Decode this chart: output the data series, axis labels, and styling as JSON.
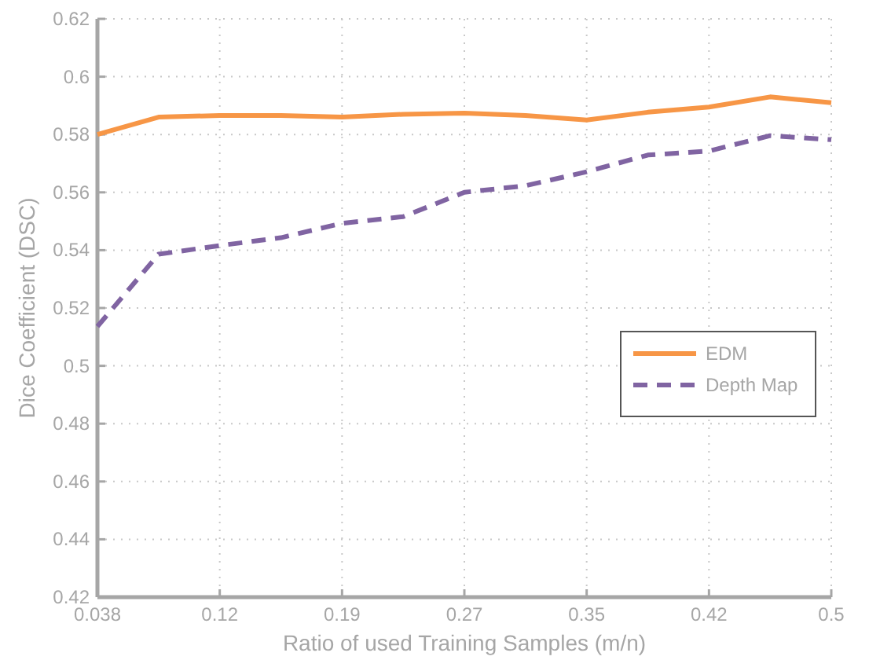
{
  "chart_data": {
    "type": "line",
    "xlabel": "Ratio of used Training Samples (m/n)",
    "ylabel": "Dice Coefficient (DSC)",
    "x": [
      0.038,
      0.0765,
      0.115,
      0.1535,
      0.192,
      0.2305,
      0.269,
      0.3075,
      0.346,
      0.3845,
      0.423,
      0.4615,
      0.5
    ],
    "series": [
      {
        "name": "EDM",
        "color": "#f79646",
        "line_style": "solid",
        "values": [
          0.58,
          0.586,
          0.5866,
          0.5866,
          0.586,
          0.587,
          0.5874,
          0.5866,
          0.585,
          0.5877,
          0.5895,
          0.593,
          0.591
        ]
      },
      {
        "name": "Depth Map",
        "color": "#8064a2",
        "line_style": "dashed",
        "values": [
          0.5136,
          0.5386,
          0.5416,
          0.5443,
          0.5493,
          0.5516,
          0.56,
          0.5623,
          0.5671,
          0.5729,
          0.5743,
          0.5796,
          0.5782
        ]
      }
    ],
    "xlim": [
      0.038,
      0.5
    ],
    "xticks": [
      0.038,
      {
        "value": 0.115,
        "label": "0.12"
      },
      {
        "value": 0.192,
        "label": "0.19"
      },
      {
        "value": 0.269,
        "label": "0.27"
      },
      {
        "value": 0.346,
        "label": "0.35"
      },
      {
        "value": 0.423,
        "label": "0.42"
      },
      0.5
    ],
    "ylim": [
      0.42,
      0.62
    ],
    "yticks": [
      0.42,
      0.44,
      0.46,
      0.48,
      0.5,
      0.52,
      0.54,
      0.56,
      0.58,
      0.6,
      0.62
    ],
    "grid": true,
    "legend": "right"
  }
}
